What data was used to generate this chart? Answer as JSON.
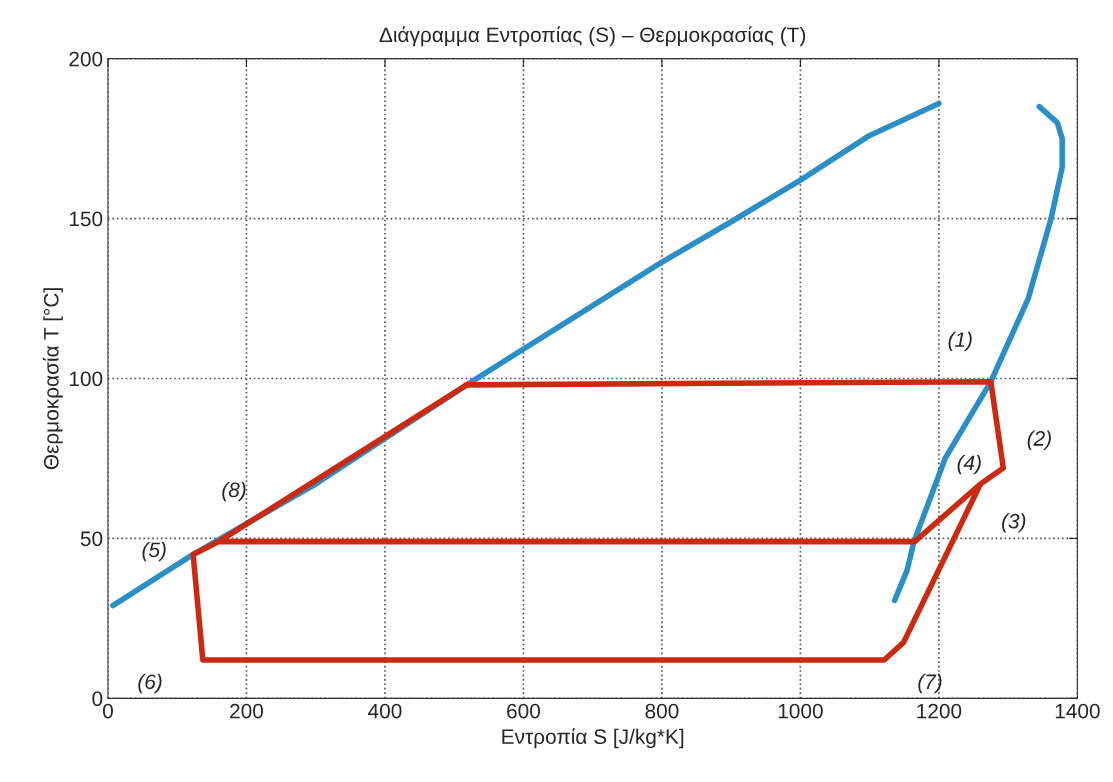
{
  "chart_data": {
    "type": "line",
    "title": "Διάγραμμα Εντροπίας (S) – Θερμοκρασίας (T)",
    "xlabel": "Εντροπία S [J/kg*K]",
    "ylabel": "Θερμοκρασία T [°C]",
    "xlim": [
      0,
      1400
    ],
    "ylim": [
      0,
      200
    ],
    "xticks": [
      0,
      200,
      400,
      600,
      800,
      1000,
      1200,
      1400
    ],
    "yticks": [
      0,
      50,
      100,
      150,
      200
    ],
    "grid": true,
    "line_style": "solid",
    "marker": "none",
    "series": [
      {
        "color": "#2a8fc7",
        "x": [
          7,
          123,
          300,
          518,
          650,
          797,
          900,
          1000,
          1100,
          1200
        ],
        "values": [
          29,
          45,
          67,
          98,
          116,
          136,
          149,
          162,
          176,
          186
        ]
      },
      {
        "color": "#2a8fc7",
        "x": [
          1136,
          1154,
          1164,
          1209,
          1275,
          1329,
          1362,
          1378,
          1378,
          1371,
          1345
        ],
        "values": [
          30.6,
          40,
          49,
          75,
          99,
          125,
          150,
          166,
          175,
          180,
          185
        ]
      },
      {
        "color": "#cc2a10",
        "x": [
          160,
          1165,
          1260,
          1293,
          1275,
          518,
          160,
          123,
          137,
          1121,
          1149,
          1260
        ],
        "values": [
          49,
          49,
          67,
          72,
          99,
          98,
          49,
          45,
          12,
          12,
          17.5,
          67
        ]
      }
    ],
    "annotations": [
      {
        "text": "(1)",
        "x": 1275,
        "y": 99
      },
      {
        "text": "(2)",
        "x": 1293,
        "y": 72
      },
      {
        "text": "(3)",
        "x": 1260,
        "y": 67
      },
      {
        "text": "(4)",
        "x": 1260,
        "y": 67
      },
      {
        "text": "(5)",
        "x": 123,
        "y": 45
      },
      {
        "text": "(6)",
        "x": 137,
        "y": 12
      },
      {
        "text": "(7)",
        "x": 1121,
        "y": 12
      },
      {
        "text": "(8)",
        "x": 160,
        "y": 49
      }
    ]
  }
}
